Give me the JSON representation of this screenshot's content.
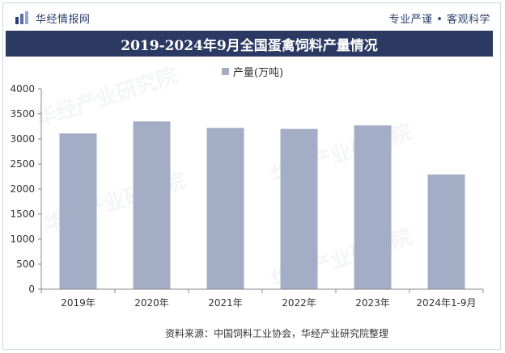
{
  "brand": {
    "name": "华经情报网",
    "tagline": "专业严谨 • 客观科学"
  },
  "colors": {
    "bar": "#a3adc6",
    "title_bg": "#2c3a63",
    "axis": "#333333"
  },
  "chart_data": {
    "type": "bar",
    "title": "2019-2024年9月全国蛋禽饲料产量情况",
    "categories": [
      "2019年",
      "2020年",
      "2021年",
      "2022年",
      "2023年",
      "2024年1-9月"
    ],
    "series": [
      {
        "name": "产量(万吨)",
        "values": [
          3110,
          3350,
          3220,
          3200,
          3270,
          2290
        ]
      }
    ],
    "ylim": [
      0,
      4000
    ],
    "yticks": [
      0,
      500,
      1000,
      1500,
      2000,
      2500,
      3000,
      3500,
      4000
    ],
    "grid": false,
    "legend_position": "top"
  },
  "source": "资料来源：中国饲料工业协会，华经产业研究院整理"
}
